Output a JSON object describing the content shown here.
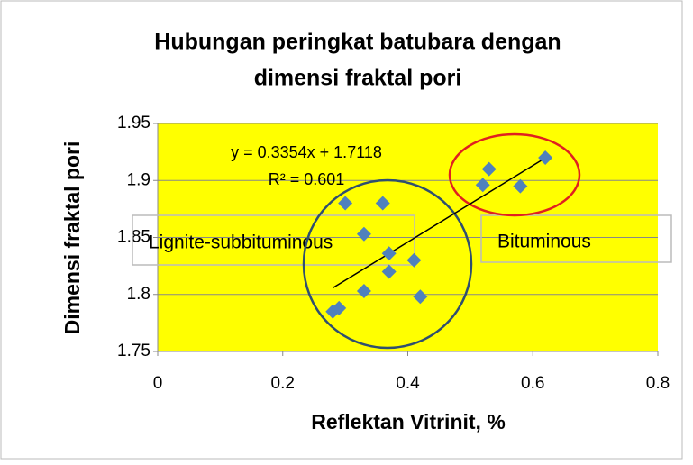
{
  "chart_data": {
    "type": "scatter",
    "title": [
      "Hubungan peringkat batubara dengan",
      "dimensi fraktal pori"
    ],
    "x_label": "Reflektan Vitrinit, %",
    "y_label": "Dimensi fraktal pori",
    "x": [
      0.28,
      0.29,
      0.33,
      0.33,
      0.3,
      0.36,
      0.37,
      0.37,
      0.41,
      0.42,
      0.52,
      0.53,
      0.58,
      0.62
    ],
    "values": [
      1.785,
      1.788,
      1.803,
      1.853,
      1.88,
      1.88,
      1.836,
      1.82,
      1.83,
      1.798,
      1.896,
      1.91,
      1.895,
      1.92
    ],
    "color": "#4f81bd",
    "xlim": [
      0,
      0.8
    ],
    "xticks": [
      0,
      0.2,
      0.4,
      0.6,
      0.8
    ],
    "ylim": [
      1.75,
      1.95
    ],
    "yticks": [
      1.75,
      1.8,
      1.85,
      1.9,
      1.95
    ],
    "grid": true,
    "plot_background": "#ffff00",
    "trendline": {
      "slope": 0.3354,
      "intercept": 1.7118,
      "equation": "y = 0.3354x + 1.7118",
      "r_squared": "R² = 0.601"
    },
    "annotations": [
      "Lignite-subbituminous",
      "Bituminous"
    ]
  }
}
